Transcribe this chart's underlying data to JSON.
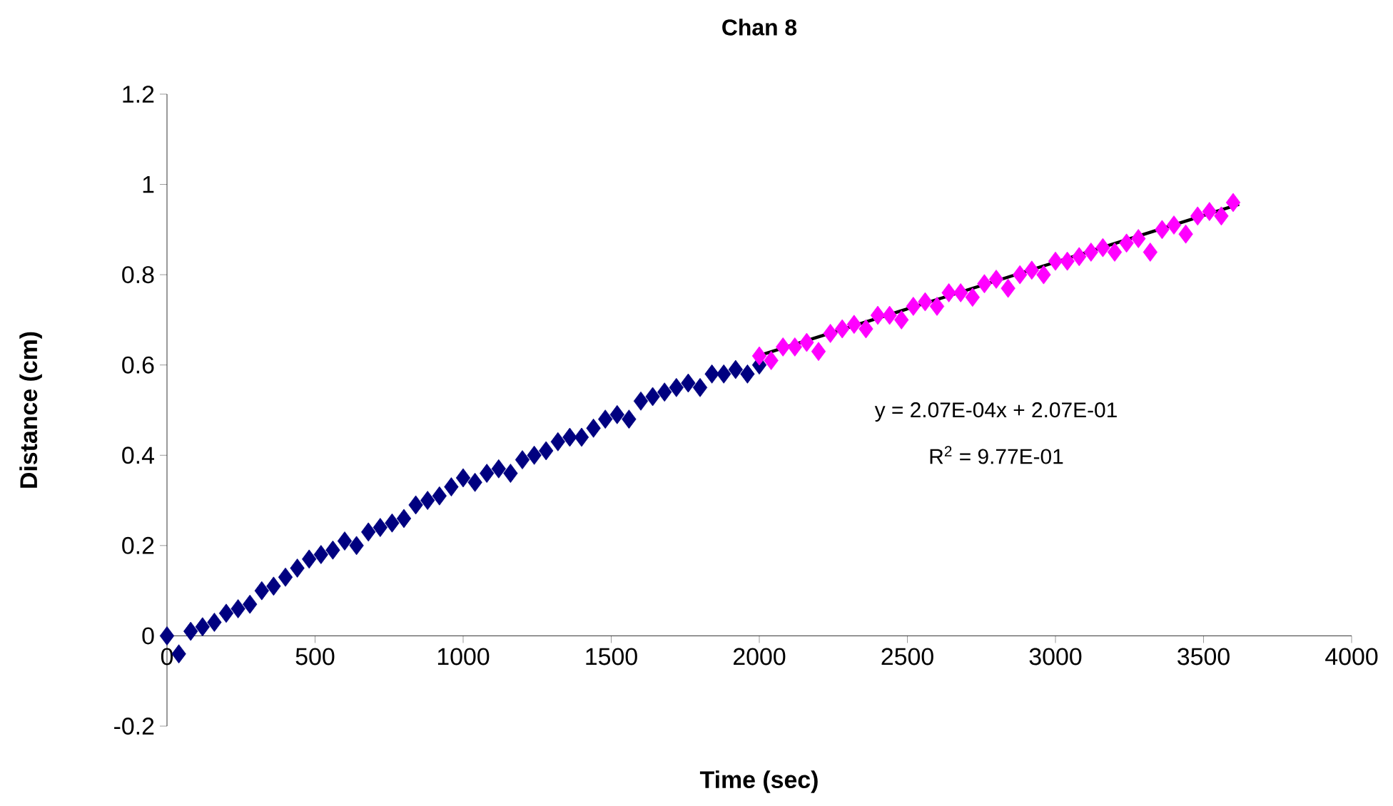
{
  "chart_data": {
    "type": "scatter",
    "title": "Chan 8",
    "xlabel": "Time (sec)",
    "ylabel": "Distance (cm)",
    "xlim": [
      0,
      4000
    ],
    "ylim": [
      -0.2,
      1.2
    ],
    "xticks": [
      0,
      500,
      1000,
      1500,
      2000,
      2500,
      3000,
      3500,
      4000
    ],
    "yticks": [
      -0.2,
      0,
      0.2,
      0.4,
      0.6,
      0.8,
      1,
      1.2
    ],
    "grid": false,
    "annotations": [
      "y = 2.07E-04x + 2.07E-01",
      "R$^{2}$ = 9.77E-01"
    ],
    "series": [
      {
        "marker": "diamond",
        "color": "#000080",
        "x": [
          0,
          40,
          80,
          120,
          160,
          200,
          240,
          280,
          320,
          360,
          400,
          440,
          480,
          520,
          560,
          600,
          640,
          680,
          720,
          760,
          800,
          840,
          880,
          920,
          960,
          1000,
          1040,
          1080,
          1120,
          1160,
          1200,
          1240,
          1280,
          1320,
          1360,
          1400,
          1440,
          1480,
          1520,
          1560,
          1600,
          1640,
          1680,
          1720,
          1760,
          1800,
          1840,
          1880,
          1920,
          1960,
          2000
        ],
        "values": [
          0,
          -0.04,
          0.01,
          0.02,
          0.03,
          0.05,
          0.06,
          0.07,
          0.1,
          0.11,
          0.13,
          0.15,
          0.17,
          0.18,
          0.19,
          0.21,
          0.2,
          0.23,
          0.24,
          0.25,
          0.26,
          0.29,
          0.3,
          0.31,
          0.33,
          0.35,
          0.34,
          0.36,
          0.37,
          0.36,
          0.39,
          0.4,
          0.41,
          0.43,
          0.44,
          0.44,
          0.46,
          0.48,
          0.49,
          0.48,
          0.52,
          0.53,
          0.54,
          0.55,
          0.56,
          0.55,
          0.58,
          0.58,
          0.59,
          0.58,
          0.6
        ]
      },
      {
        "marker": "diamond",
        "color": "#ff00ff",
        "x": [
          2000,
          2040,
          2080,
          2120,
          2160,
          2200,
          2240,
          2280,
          2320,
          2360,
          2400,
          2440,
          2480,
          2520,
          2560,
          2600,
          2640,
          2680,
          2720,
          2760,
          2800,
          2840,
          2880,
          2920,
          2960,
          3000,
          3040,
          3080,
          3120,
          3160,
          3200,
          3240,
          3280,
          3320,
          3360,
          3400,
          3440,
          3480,
          3520,
          3560,
          3600
        ],
        "values": [
          0.62,
          0.61,
          0.64,
          0.64,
          0.65,
          0.63,
          0.67,
          0.68,
          0.69,
          0.68,
          0.71,
          0.71,
          0.7,
          0.73,
          0.74,
          0.73,
          0.76,
          0.76,
          0.75,
          0.78,
          0.79,
          0.77,
          0.8,
          0.81,
          0.8,
          0.83,
          0.83,
          0.84,
          0.85,
          0.86,
          0.85,
          0.87,
          0.88,
          0.85,
          0.9,
          0.91,
          0.89,
          0.93,
          0.94,
          0.93,
          0.96
        ]
      },
      {
        "type": "line",
        "marker": "none",
        "color": "#000000",
        "x": [
          2000,
          3620
        ],
        "values": [
          0.621,
          0.956
        ]
      }
    ]
  }
}
